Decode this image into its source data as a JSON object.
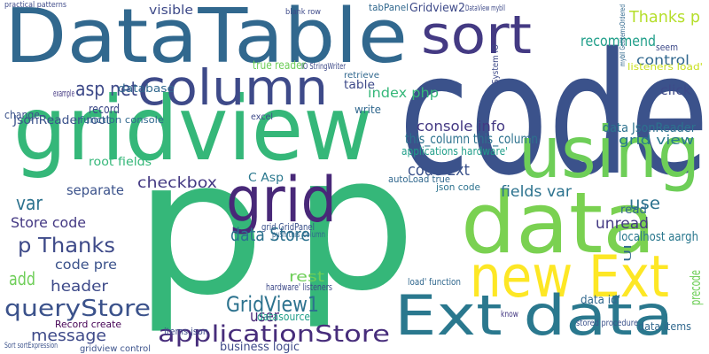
{
  "words": [
    "DataTable",
    "code",
    "p",
    "p",
    "gridview",
    "using",
    "data",
    "new Ext",
    "Ext data",
    "sort",
    "column",
    "grid",
    "applicationStore",
    "GridView1",
    "queryStore",
    "Thanks p",
    "asp net",
    "example",
    "database",
    "visible",
    "tabPanel",
    "Gridview2",
    "recommend",
    "control",
    "seem",
    "listeners load'",
    "JsonReader root",
    "record",
    "change",
    "function console",
    "true reader",
    "index php",
    "table",
    "retrieve",
    "this_column this_column",
    "console info",
    "applications hardware'",
    "code Ext",
    "data JsonReader",
    "grid view",
    "checkbox",
    "C Asp",
    "root fields'",
    "autoLoad true",
    "json code",
    "fields var",
    "use",
    "unread",
    "read",
    "localhost aargh",
    "separate",
    "var",
    "Store code",
    "p Thanks",
    "code pre",
    "add",
    "header",
    "message",
    "Record create",
    "data Store",
    "user",
    "rest",
    "hardware' listeners",
    "grid GridPanel",
    "push this_column",
    "business logic",
    "gridview control",
    "datasource",
    "items json",
    "data items",
    "precode",
    "UI",
    "stored procedure",
    "load' function",
    "IO StringWriter",
    "data id'",
    "know",
    "System IO",
    "mybll GetItemsOrdered",
    "Sort sortExpression",
    "write",
    "excel",
    "click",
    "blank row",
    "practical patterns",
    "DataView mybll"
  ]
}
